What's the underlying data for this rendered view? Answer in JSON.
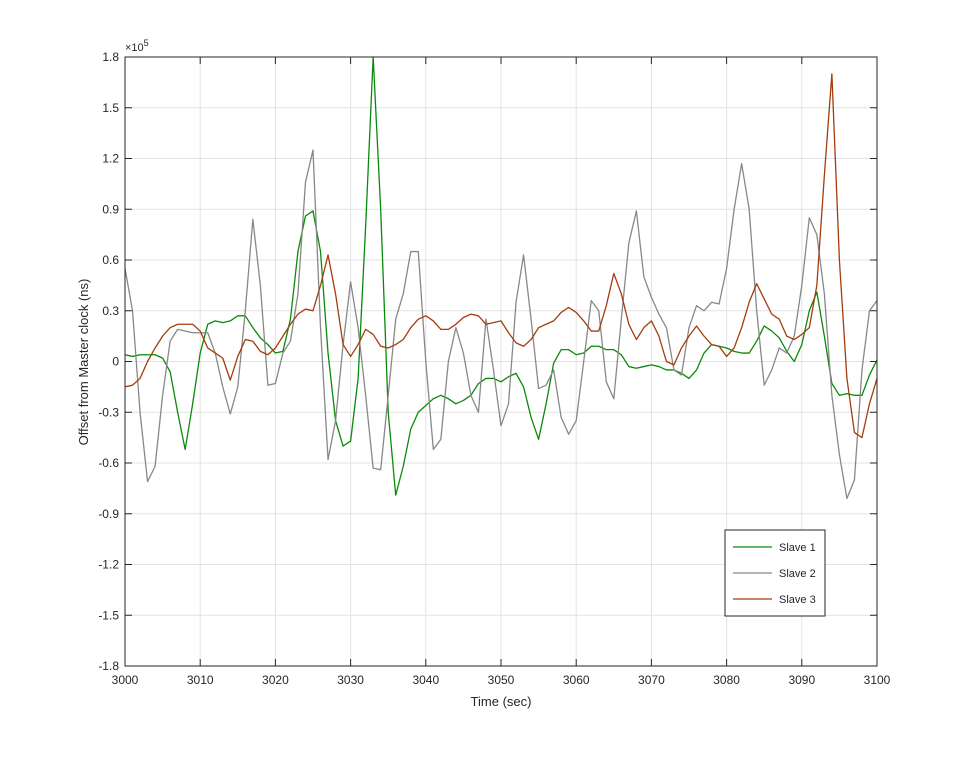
{
  "chart_data": {
    "type": "line",
    "xlabel": "Time (sec)",
    "ylabel": "Offset from Master clock (ns)",
    "y_multiplier": "×10",
    "y_multiplier_exponent": "5",
    "xlim": [
      3000,
      3100
    ],
    "ylim": [
      -1.8,
      1.8
    ],
    "xticks": [
      3000,
      3010,
      3020,
      3030,
      3040,
      3050,
      3060,
      3070,
      3080,
      3090,
      3100
    ],
    "yticks": [
      -1.8,
      -1.5,
      -1.2,
      -0.9,
      -0.6,
      -0.3,
      0,
      0.3,
      0.6,
      0.9,
      1.2,
      1.5,
      1.8
    ],
    "grid": true,
    "legend_position": "southeast",
    "x": [
      3000,
      3001,
      3002,
      3003,
      3004,
      3005,
      3006,
      3007,
      3008,
      3009,
      3010,
      3011,
      3012,
      3013,
      3014,
      3015,
      3016,
      3017,
      3018,
      3019,
      3020,
      3021,
      3022,
      3023,
      3024,
      3025,
      3026,
      3027,
      3028,
      3029,
      3030,
      3031,
      3032,
      3033,
      3034,
      3035,
      3036,
      3037,
      3038,
      3039,
      3040,
      3041,
      3042,
      3043,
      3044,
      3045,
      3046,
      3047,
      3048,
      3049,
      3050,
      3051,
      3052,
      3053,
      3054,
      3055,
      3056,
      3057,
      3058,
      3059,
      3060,
      3061,
      3062,
      3063,
      3064,
      3065,
      3066,
      3067,
      3068,
      3069,
      3070,
      3071,
      3072,
      3073,
      3074,
      3075,
      3076,
      3077,
      3078,
      3079,
      3080,
      3081,
      3082,
      3083,
      3084,
      3085,
      3086,
      3087,
      3088,
      3089,
      3090,
      3091,
      3092,
      3093,
      3094,
      3095,
      3096,
      3097,
      3098,
      3099,
      3100
    ],
    "series": [
      {
        "name": "Slave 1",
        "color": "#0a8a0a",
        "values": [
          0.04,
          0.03,
          0.04,
          0.04,
          0.04,
          0.02,
          -0.06,
          -0.3,
          -0.52,
          -0.25,
          0.05,
          0.22,
          0.24,
          0.23,
          0.24,
          0.27,
          0.27,
          0.2,
          0.14,
          0.1,
          0.05,
          0.06,
          0.25,
          0.65,
          0.86,
          0.89,
          0.65,
          0.05,
          -0.35,
          -0.5,
          -0.47,
          -0.1,
          0.8,
          1.8,
          0.9,
          -0.3,
          -0.79,
          -0.62,
          -0.4,
          -0.3,
          -0.26,
          -0.22,
          -0.2,
          -0.22,
          -0.25,
          -0.23,
          -0.2,
          -0.13,
          -0.1,
          -0.1,
          -0.12,
          -0.09,
          -0.07,
          -0.15,
          -0.33,
          -0.46,
          -0.25,
          -0.01,
          0.07,
          0.07,
          0.04,
          0.05,
          0.09,
          0.09,
          0.07,
          0.07,
          0.04,
          -0.03,
          -0.04,
          -0.03,
          -0.02,
          -0.03,
          -0.05,
          -0.05,
          -0.07,
          -0.1,
          -0.05,
          0.05,
          0.1,
          0.09,
          0.08,
          0.06,
          0.05,
          0.05,
          0.12,
          0.21,
          0.18,
          0.14,
          0.06,
          0.0,
          0.1,
          0.3,
          0.41,
          0.15,
          -0.13,
          -0.2,
          -0.19,
          -0.2,
          -0.2,
          -0.08,
          0.01
        ]
      },
      {
        "name": "Slave 2",
        "color": "#888888",
        "values": [
          0.55,
          0.3,
          -0.3,
          -0.71,
          -0.62,
          -0.2,
          0.12,
          0.19,
          0.18,
          0.17,
          0.17,
          0.17,
          0.05,
          -0.15,
          -0.31,
          -0.15,
          0.3,
          0.84,
          0.45,
          -0.14,
          -0.13,
          0.05,
          0.12,
          0.4,
          1.06,
          1.25,
          0.2,
          -0.58,
          -0.35,
          0.1,
          0.47,
          0.2,
          -0.2,
          -0.63,
          -0.64,
          -0.2,
          0.25,
          0.4,
          0.65,
          0.65,
          0.0,
          -0.52,
          -0.46,
          0.0,
          0.2,
          0.05,
          -0.2,
          -0.3,
          0.25,
          -0.05,
          -0.38,
          -0.25,
          0.35,
          0.63,
          0.25,
          -0.16,
          -0.14,
          -0.05,
          -0.33,
          -0.43,
          -0.35,
          0.0,
          0.36,
          0.3,
          -0.12,
          -0.22,
          0.25,
          0.7,
          0.89,
          0.5,
          0.38,
          0.28,
          0.2,
          -0.05,
          -0.08,
          0.2,
          0.33,
          0.3,
          0.35,
          0.34,
          0.55,
          0.9,
          1.17,
          0.9,
          0.3,
          -0.14,
          -0.05,
          0.08,
          0.05,
          0.15,
          0.45,
          0.85,
          0.75,
          0.4,
          -0.2,
          -0.55,
          -0.81,
          -0.7,
          -0.05,
          0.3,
          0.36
        ]
      },
      {
        "name": "Slave 3",
        "color": "#a33d0c",
        "values": [
          -0.15,
          -0.14,
          -0.1,
          0.0,
          0.08,
          0.15,
          0.2,
          0.22,
          0.22,
          0.22,
          0.18,
          0.08,
          0.05,
          0.02,
          -0.11,
          0.03,
          0.13,
          0.12,
          0.06,
          0.04,
          0.08,
          0.15,
          0.22,
          0.28,
          0.31,
          0.3,
          0.45,
          0.63,
          0.4,
          0.1,
          0.03,
          0.1,
          0.19,
          0.16,
          0.09,
          0.08,
          0.1,
          0.13,
          0.2,
          0.25,
          0.27,
          0.24,
          0.19,
          0.19,
          0.22,
          0.26,
          0.28,
          0.27,
          0.22,
          0.23,
          0.24,
          0.17,
          0.11,
          0.09,
          0.13,
          0.2,
          0.22,
          0.24,
          0.29,
          0.32,
          0.29,
          0.24,
          0.18,
          0.18,
          0.33,
          0.52,
          0.4,
          0.22,
          0.13,
          0.2,
          0.24,
          0.15,
          0.0,
          -0.02,
          0.08,
          0.15,
          0.21,
          0.15,
          0.1,
          0.09,
          0.03,
          0.08,
          0.2,
          0.35,
          0.46,
          0.37,
          0.28,
          0.25,
          0.15,
          0.13,
          0.16,
          0.2,
          0.45,
          1.1,
          1.7,
          0.6,
          -0.1,
          -0.42,
          -0.45,
          -0.25,
          -0.1
        ]
      }
    ]
  }
}
